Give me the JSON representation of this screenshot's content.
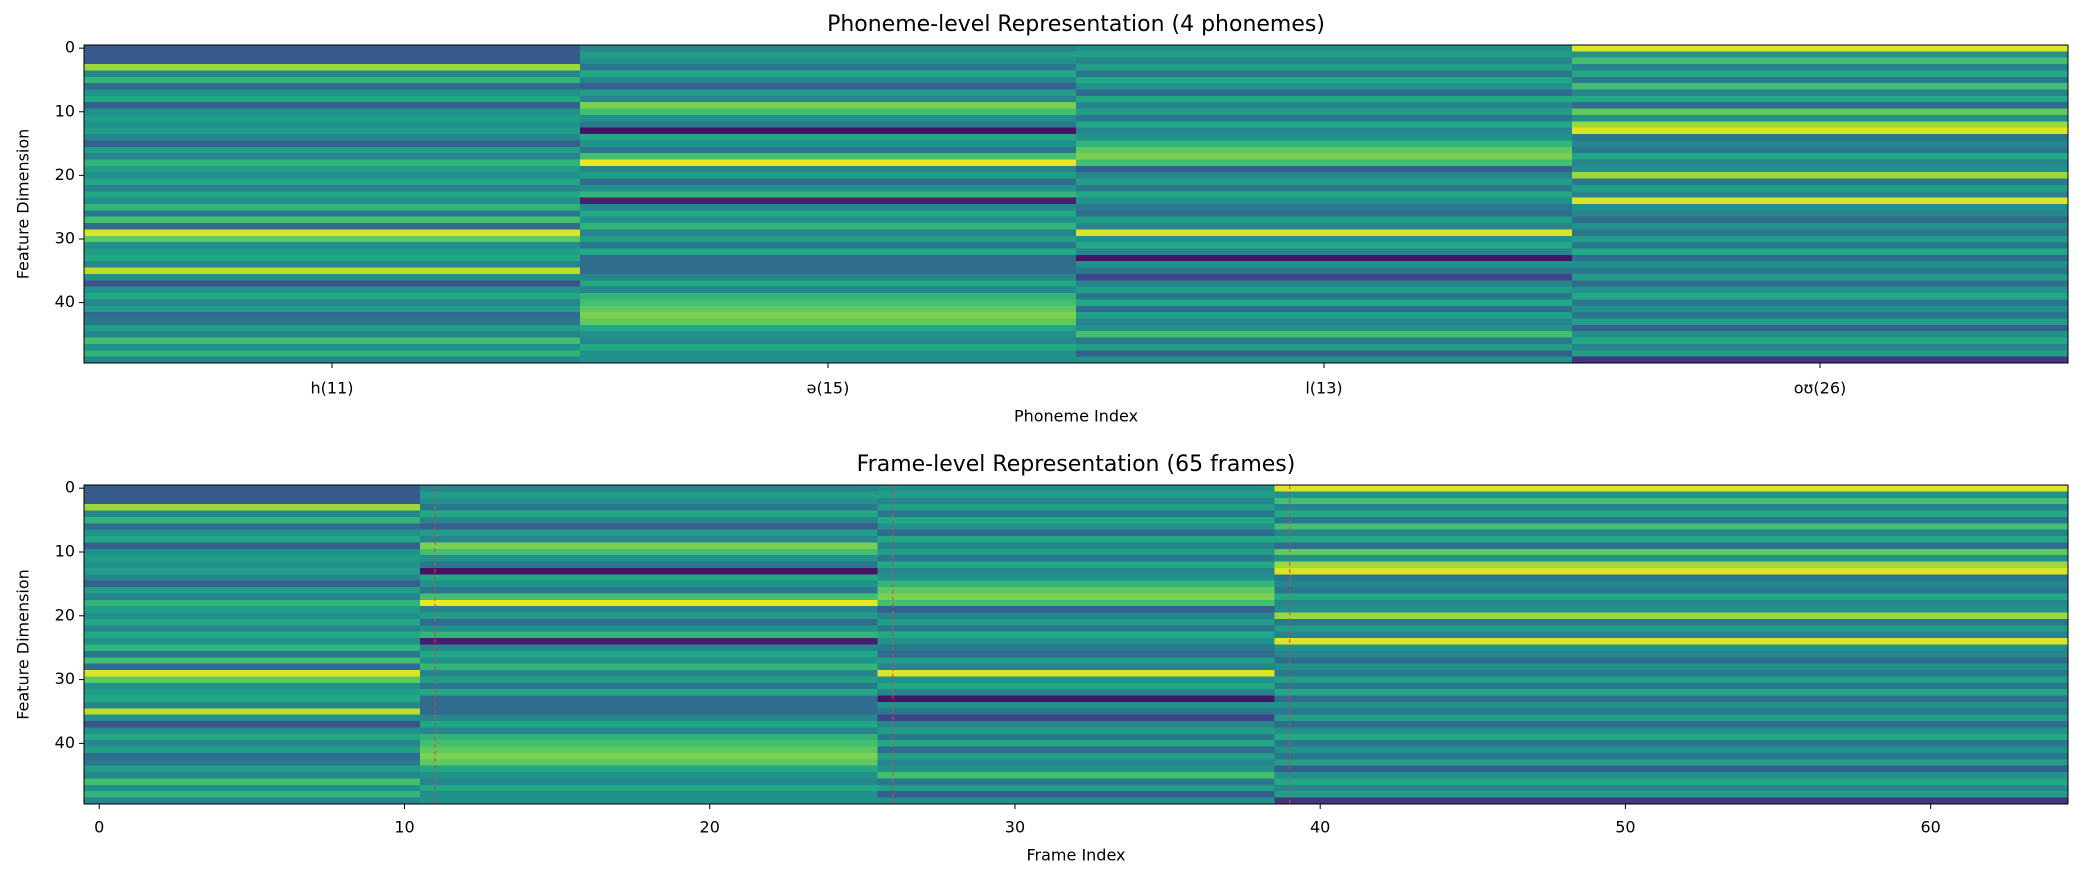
{
  "chart_data": [
    {
      "type": "heatmap",
      "title": "Phoneme-level Representation (4 phonemes)",
      "xlabel": "Phoneme Index",
      "ylabel": "Feature Dimension",
      "categories": [
        "h(11)",
        "ə(15)",
        "l(13)",
        "oʊ(26)"
      ],
      "colormap": "viridis",
      "ylim": [
        49.5,
        -0.5
      ],
      "yticks": [
        0,
        10,
        20,
        30,
        40
      ],
      "z": [
        [
          0.28,
          0.45,
          0.5,
          0.95
        ],
        [
          0.28,
          0.55,
          0.55,
          0.5
        ],
        [
          0.28,
          0.5,
          0.45,
          0.7
        ],
        [
          0.85,
          0.4,
          0.55,
          0.45
        ],
        [
          0.45,
          0.6,
          0.4,
          0.6
        ],
        [
          0.65,
          0.45,
          0.6,
          0.4
        ],
        [
          0.35,
          0.3,
          0.5,
          0.7
        ],
        [
          0.5,
          0.55,
          0.35,
          0.45
        ],
        [
          0.6,
          0.45,
          0.6,
          0.6
        ],
        [
          0.3,
          0.8,
          0.45,
          0.35
        ],
        [
          0.5,
          0.7,
          0.55,
          0.75
        ],
        [
          0.55,
          0.5,
          0.4,
          0.5
        ],
        [
          0.5,
          0.4,
          0.6,
          0.85
        ],
        [
          0.55,
          0.05,
          0.45,
          0.95
        ],
        [
          0.45,
          0.6,
          0.5,
          0.4
        ],
        [
          0.3,
          0.5,
          0.65,
          0.45
        ],
        [
          0.55,
          0.4,
          0.75,
          0.4
        ],
        [
          0.45,
          0.7,
          0.8,
          0.6
        ],
        [
          0.65,
          0.97,
          0.7,
          0.45
        ],
        [
          0.55,
          0.45,
          0.3,
          0.5
        ],
        [
          0.5,
          0.55,
          0.45,
          0.85
        ],
        [
          0.6,
          0.35,
          0.55,
          0.4
        ],
        [
          0.45,
          0.5,
          0.4,
          0.55
        ],
        [
          0.6,
          0.65,
          0.6,
          0.45
        ],
        [
          0.5,
          0.08,
          0.5,
          0.95
        ],
        [
          0.65,
          0.45,
          0.4,
          0.5
        ],
        [
          0.4,
          0.6,
          0.35,
          0.45
        ],
        [
          0.7,
          0.5,
          0.55,
          0.35
        ],
        [
          0.35,
          0.65,
          0.45,
          0.5
        ],
        [
          0.95,
          0.45,
          0.95,
          0.4
        ],
        [
          0.75,
          0.55,
          0.5,
          0.55
        ],
        [
          0.5,
          0.4,
          0.6,
          0.4
        ],
        [
          0.55,
          0.6,
          0.45,
          0.6
        ],
        [
          0.6,
          0.35,
          0.05,
          0.35
        ],
        [
          0.45,
          0.35,
          0.5,
          0.5
        ],
        [
          0.9,
          0.35,
          0.4,
          0.4
        ],
        [
          0.5,
          0.45,
          0.2,
          0.55
        ],
        [
          0.25,
          0.6,
          0.45,
          0.35
        ],
        [
          0.5,
          0.45,
          0.55,
          0.5
        ],
        [
          0.6,
          0.65,
          0.4,
          0.6
        ],
        [
          0.45,
          0.7,
          0.6,
          0.4
        ],
        [
          0.55,
          0.75,
          0.35,
          0.5
        ],
        [
          0.35,
          0.8,
          0.55,
          0.4
        ],
        [
          0.4,
          0.75,
          0.45,
          0.55
        ],
        [
          0.55,
          0.6,
          0.5,
          0.3
        ],
        [
          0.45,
          0.5,
          0.7,
          0.5
        ],
        [
          0.7,
          0.45,
          0.4,
          0.6
        ],
        [
          0.5,
          0.6,
          0.55,
          0.45
        ],
        [
          0.65,
          0.5,
          0.3,
          0.55
        ],
        [
          0.45,
          0.5,
          0.5,
          0.15
        ]
      ]
    },
    {
      "type": "frame-heatmap",
      "title": "Frame-level Representation (65 frames)",
      "xlabel": "Frame Index",
      "ylabel": "Feature Dimension",
      "frames_per_phoneme": [
        11,
        15,
        13,
        26
      ],
      "boundaries": [
        11,
        26,
        39
      ],
      "boundary_color": "#c0504d",
      "xlim": [
        -0.5,
        64.5
      ],
      "xticks": [
        0,
        10,
        20,
        30,
        40,
        50,
        60
      ],
      "ylim": [
        49.5,
        -0.5
      ],
      "yticks": [
        0,
        10,
        20,
        30,
        40
      ]
    }
  ]
}
